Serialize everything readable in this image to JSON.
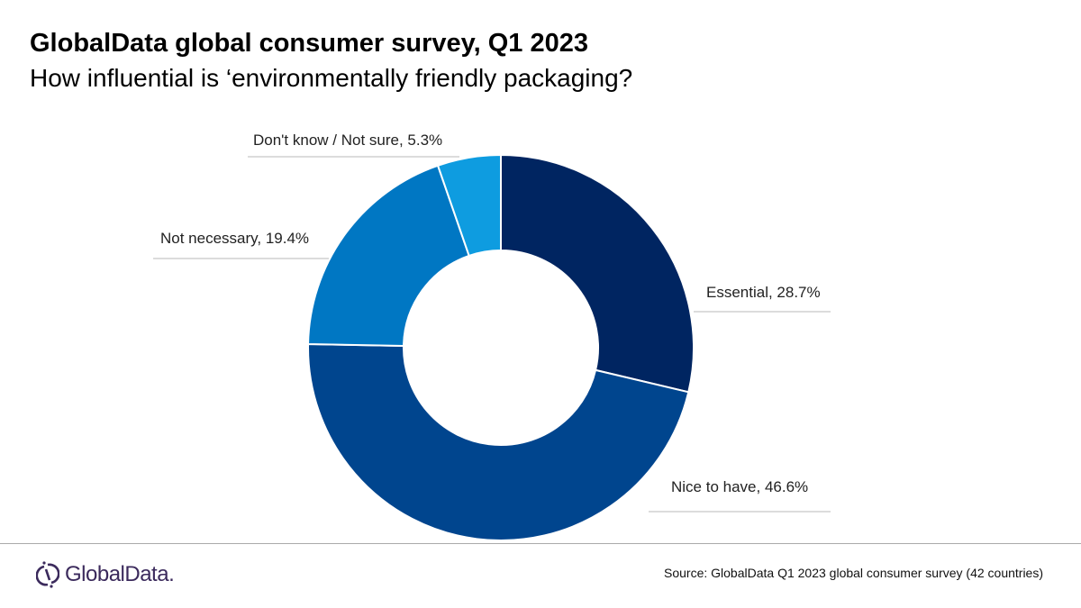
{
  "title": "GlobalData global consumer survey, Q1 2023",
  "subtitle": "How influential is ‘environmentally friendly packaging?",
  "chart_data": {
    "type": "pie",
    "variant": "donut",
    "start": "12 o'clock, clockwise",
    "series": [
      {
        "name": "Essential",
        "value": 28.7,
        "label": "Essential, 28.7%",
        "color": "#002561"
      },
      {
        "name": "Nice to have",
        "value": 46.6,
        "label": "Nice to have, 46.6%",
        "color": "#00458e"
      },
      {
        "name": "Not necessary",
        "value": 19.4,
        "label": "Not necessary, 19.4%",
        "color": "#0077c3"
      },
      {
        "name": "Don't know / Not sure",
        "value": 5.3,
        "label": "Don't know / Not sure, 5.3%",
        "color": "#0e9ce0"
      }
    ]
  },
  "footer": {
    "logo": "GlobalData.",
    "source": "Source: GlobalData Q1 2023 global consumer survey (42 countries)"
  }
}
